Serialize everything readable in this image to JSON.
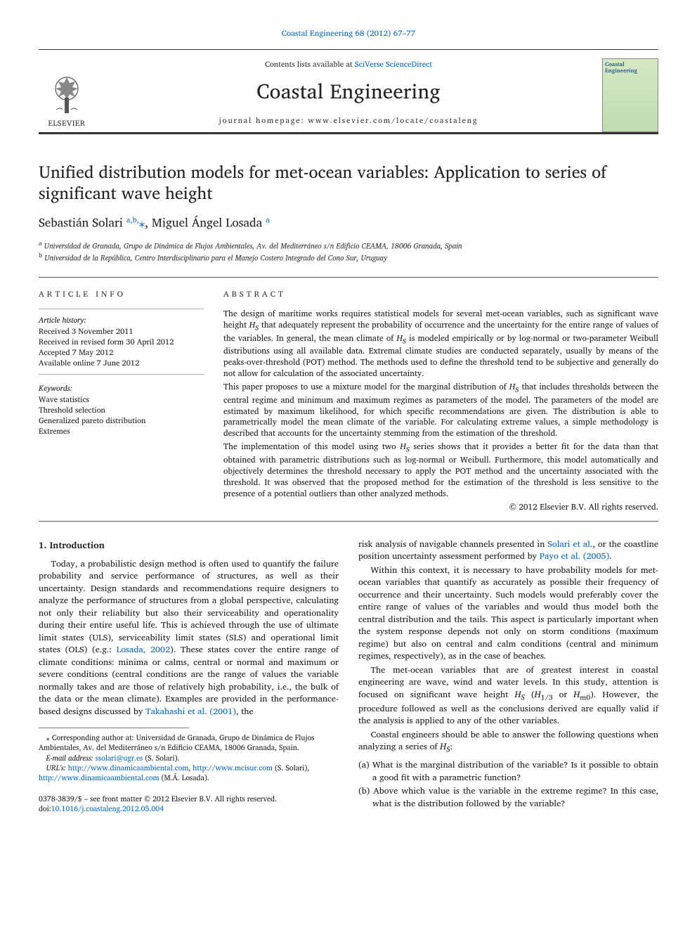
{
  "journal_ref": {
    "prefix": "",
    "journal_link": "Coastal Engineering 68 (2012) 67–77"
  },
  "masthead": {
    "elsevier": "ELSEVIER",
    "contents_prefix": "Contents lists available at ",
    "contents_link": "SciVerse ScienceDirect",
    "journal_title": "Coastal Engineering",
    "homepage": "journal homepage: www.elsevier.com/locate/coastaleng",
    "cover_title": "Coastal Engineering"
  },
  "article": {
    "title": "Unified distribution models for met-ocean variables: Application to series of significant wave height",
    "authors_html": "Sebastián Solari <a class='sup-link' href='#'><sup>a,b,</sup></a><span class='star'>⁎</span>, Miguel Ángel Losada <a class='sup-link' href='#'><sup>a</sup></a>",
    "affiliations": {
      "a": "Universidad de Granada, Grupo de Dinámica de Flujos Ambientales, Av. del Mediterráneo s/n Edificio CEAMA, 18006 Granada, Spain",
      "b": "Universidad de la República, Centro Interdisciplinario para el Manejo Costero Integrado del Cono Sur, Uruguay"
    }
  },
  "info": {
    "label": "ARTICLE INFO",
    "history_label": "Article history:",
    "history": [
      "Received 3 November 2011",
      "Received in revised form 30 April 2012",
      "Accepted 7 May 2012",
      "Available online 7 June 2012"
    ],
    "kw_label": "Keywords:",
    "keywords": [
      "Wave statistics",
      "Threshold selection",
      "Generalized pareto distribution",
      "Extremes"
    ]
  },
  "abstract": {
    "label": "ABSTRACT",
    "p1": "The design of maritime works requires statistical models for several met-ocean variables, such as significant wave height H_S that adequately represent the probability of occurrence and the uncertainty for the entire range of values of the variables. In general, the mean climate of H_S is modeled empirically or by log-normal or two-parameter Weibull distributions using all available data. Extremal climate studies are conducted separately, usually by means of the peaks-over-threshold (POT) method. The methods used to define the threshold tend to be subjective and generally do not allow for calculation of the associated uncertainty.",
    "p2": "This paper proposes to use a mixture model for the marginal distribution of H_S that includes thresholds between the central regime and minimum and maximum regimes as parameters of the model. The parameters of the model are estimated by maximum likelihood, for which specific recommendations are given. The distribution is able to parametrically model the mean climate of the variable. For calculating extreme values, a simple methodology is described that accounts for the uncertainty stemming from the estimation of the threshold.",
    "p3": "The implementation of this model using two H_S series shows that it provides a better fit for the data than that obtained with parametric distributions such as log-normal or Weibull. Furthermore, this model automatically and objectively determines the threshold necessary to apply the POT method and the uncertainty associated with the threshold. It was observed that the proposed method for the estimation of the threshold is less sensitive to the presence of a potential outliers than other analyzed methods.",
    "copyright": "© 2012 Elsevier B.V. All rights reserved."
  },
  "intro": {
    "heading": "1. Introduction",
    "col1_p1_a": "Today, a probabilistic design method is often used to quantify the failure probability and service performance of structures, as well as their uncertainty. Design standards and recommendations require designers to analyze the performance of structures from a global perspective, calculating not only their reliability but also their serviceability and operationality during their entire useful life. This is achieved through the use of ultimate limit states (ULS), serviceability limit states (SLS) and operational limit states (OLS) (e.g.: ",
    "col1_link1": "Losada, 2002",
    "col1_p1_b": "). These states cover the entire range of climate conditions: minima or calms, central or normal and maximum or severe conditions (central conditions are the range of values the variable normally takes and are those of relatively high probability, i.e., the bulk of the data or the mean climate). Examples are provided in the performance-based designs discussed by ",
    "col1_link2": "Takahashi et al. (2001)",
    "col1_p1_c": ", the",
    "col2_p0_a": "risk analysis of navigable channels presented in ",
    "col2_link1": "Solari et al.",
    "col2_p0_b": ", or the coastline position uncertainty assessment performed by ",
    "col2_link2": "Payo et al. (2005)",
    "col2_p0_c": ".",
    "col2_p1": "Within this context, it is necessary to have probability models for met-ocean variables that quantify as accurately as possible their frequency of occurrence and their uncertainty. Such models would preferably cover the entire range of values of the variables and would thus model both the central distribution and the tails. This aspect is particularly important when the system response depends not only on storm conditions (maximum regime) but also on central and calm conditions (central and minimum regimes, respectively), as in the case of beaches.",
    "col2_p2": "The met-ocean variables that are of greatest interest in coastal engineering are wave, wind and water levels. In this study, attention is focused on significant wave height H_S (H_{1/3} or H_{m0}). However, the procedure followed as well as the conclusions derived are equally valid if the analysis is applied to any of the other variables.",
    "col2_p3": "Coastal engineers should be able to answer the following questions when analyzing a series of H_S:",
    "qa": "(a) What is the marginal distribution of the variable? Is it possible to obtain a good fit with a parametric function?",
    "qb": "(b) Above which value is the variable in the extreme regime? In this case, what is the distribution followed by the variable?"
  },
  "footnotes": {
    "corr": "⁎ Corresponding author at: Universidad de Granada, Grupo de Dinámica de Flujos Ambientales, Av. del Mediterráneo s/n Edificio CEAMA, 18006 Granada, Spain.",
    "email_label": "E-mail address: ",
    "email": "ssolari@ugr.es",
    "email_who": " (S. Solari).",
    "urls_label": "URL's: ",
    "url1": "http://www.dinamicaambiental.com",
    "url2": "http://www.mcisur.com",
    "url_who1": " (S. Solari), ",
    "url3": "http://www.dinamicaambiental.com",
    "url_who2": " (M.Á. Losada)."
  },
  "bottom": {
    "issn": "0378-3839/$ – see front matter © 2012 Elsevier B.V. All rights reserved.",
    "doi_prefix": "doi:",
    "doi": "10.1016/j.coastaleng.2012.05.004"
  },
  "colors": {
    "link": "#0066cc",
    "text": "#1a1a1a",
    "rule": "#555555",
    "bg": "#ffffff"
  },
  "typography": {
    "body_pt": 12.5,
    "title_pt": 24,
    "journal_title_pt": 29,
    "abstract_pt": 11.8,
    "footnote_pt": 10.5,
    "font_family": "Times/serif"
  }
}
